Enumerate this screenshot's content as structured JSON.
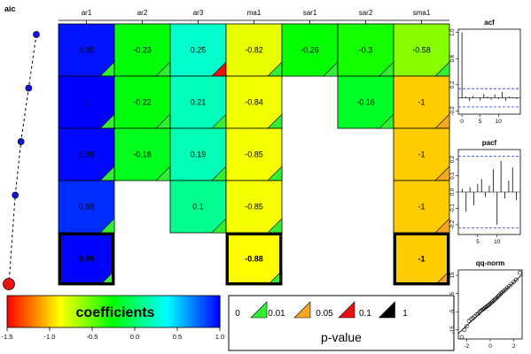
{
  "chart_data": {
    "type": "heatmap",
    "title": "",
    "aic_label": "aic",
    "columns": [
      "ar1",
      "ar2",
      "ar3",
      "ma1",
      "sar1",
      "sar2",
      "sma1"
    ],
    "rows": [
      {
        "aic_rank": 1,
        "values": [
          "0.95",
          "-0.23",
          "0.25",
          "-0.82",
          "-0.26",
          "-0.3",
          "-0.58"
        ],
        "pvalue_class": [
          "0",
          "0",
          "0.05",
          "0",
          "0",
          "0",
          "0"
        ]
      },
      {
        "aic_rank": 2,
        "values": [
          "1",
          "-0.22",
          "0.21",
          "-0.84",
          null,
          "-0.16",
          "-1"
        ],
        "pvalue_class": [
          "0",
          "0",
          "0",
          "0",
          null,
          "0",
          "0.01"
        ]
      },
      {
        "aic_rank": 3,
        "values": [
          "0.98",
          "-0.18",
          "0.19",
          "-0.85",
          null,
          null,
          "-1"
        ],
        "pvalue_class": [
          "0",
          "0",
          "0",
          "0",
          null,
          null,
          "0.01"
        ]
      },
      {
        "aic_rank": 4,
        "values": [
          "0.89",
          null,
          "0.1",
          "-0.85",
          null,
          null,
          "-1"
        ],
        "pvalue_class": [
          "0",
          null,
          "0",
          "0",
          null,
          null,
          "0.01"
        ]
      },
      {
        "aic_rank": 5,
        "values": [
          "0.99",
          null,
          null,
          "-0.88",
          null,
          null,
          "-1"
        ],
        "pvalue_class": [
          "0",
          null,
          null,
          "0",
          null,
          null,
          "0.01"
        ],
        "best": true
      }
    ],
    "aic_path": [
      0.86,
      0.62,
      0.38,
      0.2,
      0.0
    ],
    "colorbar": {
      "label": "coefficients",
      "range": [
        -1.5,
        1.0
      ],
      "ticks": [
        "-1.5",
        "-1.0",
        "-0.5",
        "0.0",
        "0.5",
        "1.0"
      ]
    },
    "pvalue_legend": {
      "title": "p-value",
      "breaks": [
        "0",
        "0.01",
        "0.05",
        "0.1",
        "1"
      ],
      "colors": [
        "#33ee33",
        "#f5a623",
        "#ee1111",
        "#000000"
      ]
    },
    "acf": {
      "title": "acf",
      "x_ticks": [
        "0",
        "5",
        "10"
      ],
      "y_ticks": [
        "1.0",
        "0.6",
        "0.2",
        "-0.2"
      ],
      "ylim": [
        -0.25,
        1.05
      ],
      "band": 0.14,
      "lags": [
        0,
        1,
        2,
        3,
        4,
        5,
        6,
        7,
        8,
        9,
        10,
        11,
        12,
        13,
        14,
        15
      ],
      "values": [
        1.0,
        0.02,
        -0.05,
        0.03,
        0.0,
        -0.04,
        0.06,
        0.02,
        -0.03,
        0.05,
        -0.02,
        0.09,
        -0.05,
        0.02,
        0.01,
        -0.02
      ]
    },
    "pacf": {
      "title": "pacf",
      "x_ticks": [
        "5",
        "10"
      ],
      "y_ticks": [
        "0.2",
        "0.1",
        "0.0",
        "-0.1",
        "-0.2"
      ],
      "ylim": [
        -0.26,
        0.26
      ],
      "band": 0.22,
      "lags": [
        1,
        2,
        3,
        4,
        5,
        6,
        7,
        8,
        9,
        10,
        11,
        12,
        13,
        14,
        15
      ],
      "values": [
        0.02,
        -0.12,
        0.03,
        -0.08,
        0.05,
        0.08,
        -0.03,
        0.04,
        0.14,
        -0.2,
        0.19,
        -0.04,
        0.07,
        0.15,
        -0.05
      ]
    },
    "qqnorm": {
      "title": "qq-norm",
      "x_ticks": [
        "-2",
        "0",
        "2"
      ],
      "y_ticks": [
        "15",
        "5",
        "-5",
        "-15"
      ],
      "xlim": [
        -2.7,
        2.7
      ],
      "ylim": [
        -20,
        18
      ],
      "line": {
        "slope": 6.0,
        "intercept": -0.8
      },
      "points": [
        [
          -2.4,
          -19
        ],
        [
          -2.2,
          -15
        ],
        [
          -2.0,
          -13
        ],
        [
          -1.8,
          -10
        ],
        [
          -1.6,
          -9
        ],
        [
          -1.45,
          -8.5
        ],
        [
          -1.3,
          -7.5
        ],
        [
          -1.15,
          -6.5
        ],
        [
          -1.0,
          -6
        ],
        [
          -0.9,
          -5
        ],
        [
          -0.8,
          -4.6
        ],
        [
          -0.7,
          -4
        ],
        [
          -0.6,
          -3.6
        ],
        [
          -0.5,
          -3.2
        ],
        [
          -0.4,
          -2.6
        ],
        [
          -0.3,
          -2.2
        ],
        [
          -0.2,
          -1.6
        ],
        [
          -0.1,
          -1.2
        ],
        [
          0.0,
          -0.6
        ],
        [
          0.1,
          0.0
        ],
        [
          0.2,
          0.6
        ],
        [
          0.3,
          1.2
        ],
        [
          0.4,
          1.8
        ],
        [
          0.5,
          2.4
        ],
        [
          0.6,
          3.0
        ],
        [
          0.7,
          3.6
        ],
        [
          0.8,
          4.3
        ],
        [
          0.9,
          5.0
        ],
        [
          1.0,
          5.6
        ],
        [
          1.15,
          6.4
        ],
        [
          1.3,
          7.2
        ],
        [
          1.45,
          8.2
        ],
        [
          1.6,
          9.0
        ],
        [
          1.8,
          10.2
        ],
        [
          2.0,
          11.4
        ],
        [
          2.2,
          12.6
        ],
        [
          2.5,
          16.5
        ]
      ]
    }
  }
}
